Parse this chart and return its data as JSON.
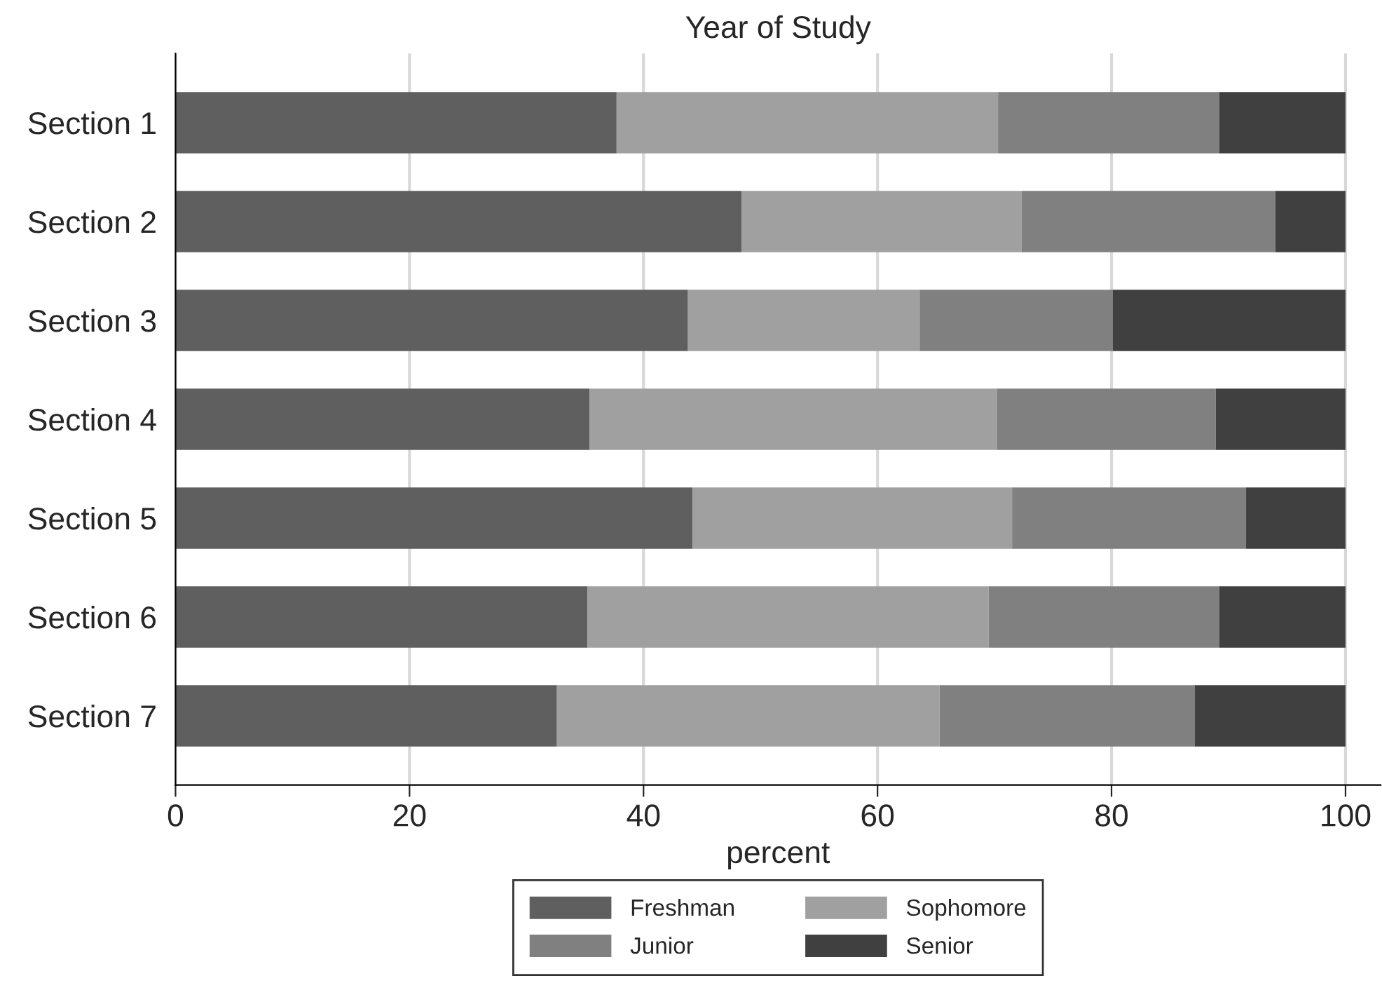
{
  "chart_data": {
    "type": "bar",
    "orientation": "horizontal",
    "stacked": true,
    "title": "Year of Study",
    "xlabel": "percent",
    "categories": [
      "Section 1",
      "Section 2",
      "Section 3",
      "Section 4",
      "Section 5",
      "Section 6",
      "Section 7"
    ],
    "series": [
      {
        "name": "Freshman",
        "color": "#5f5f5f",
        "values": [
          37.7,
          48.4,
          43.8,
          35.4,
          44.2,
          35.2,
          32.6
        ]
      },
      {
        "name": "Sophomore",
        "color": "#a0a0a0",
        "values": [
          32.6,
          23.9,
          19.8,
          34.8,
          27.3,
          34.3,
          32.7
        ]
      },
      {
        "name": "Junior",
        "color": "#808080",
        "values": [
          18.9,
          21.7,
          16.5,
          18.7,
          20.0,
          19.7,
          21.8
        ]
      },
      {
        "name": "Senior",
        "color": "#404040",
        "values": [
          10.8,
          6.0,
          19.9,
          11.1,
          8.5,
          10.8,
          12.9
        ]
      }
    ],
    "xlim": [
      0,
      103
    ],
    "xticks": [
      0,
      20,
      40,
      60,
      80,
      100
    ],
    "grid": "x",
    "legend": "bottom"
  }
}
